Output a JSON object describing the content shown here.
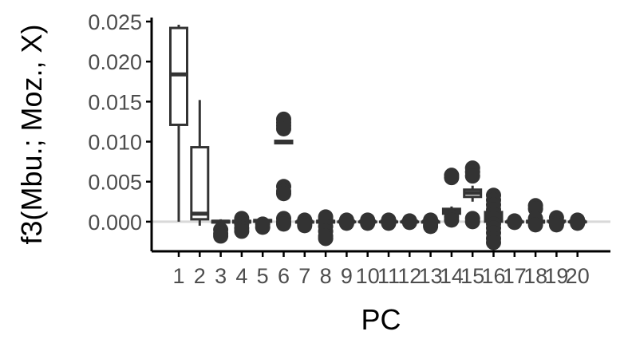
{
  "chart_data": {
    "type": "boxplot",
    "xlabel": "PC",
    "ylabel": "f3(Mbu.; Moz., X)",
    "ylim": [
      -0.0037,
      0.0255
    ],
    "y_ticks": [
      0.0,
      0.005,
      0.01,
      0.015,
      0.02,
      0.025
    ],
    "y_tick_labels": [
      "0.000",
      "0.005",
      "0.010",
      "0.015",
      "0.020",
      "0.025"
    ],
    "categories": [
      "1",
      "2",
      "3",
      "4",
      "5",
      "6",
      "7",
      "8",
      "9",
      "10",
      "11",
      "12",
      "13",
      "14",
      "15",
      "16",
      "17",
      "18",
      "19",
      "20"
    ],
    "grid": false,
    "reference_line": 0.0,
    "colors": {
      "box": "#333333",
      "reference_line": "#d9d9d9",
      "axis": "#000000",
      "tick_label": "#4d4d4d"
    },
    "boxes": [
      {
        "pc": "1",
        "min": 0.0,
        "q1": 0.0121,
        "median": 0.0184,
        "q3": 0.0242,
        "max": 0.0246,
        "outliers": []
      },
      {
        "pc": "2",
        "min": -0.0005,
        "q1": 0.0003,
        "median": 0.001,
        "q3": 0.0093,
        "max": 0.0152,
        "outliers": []
      },
      {
        "pc": "3",
        "min": -0.0002,
        "q1": -0.0001,
        "median": 0.0,
        "q3": 0.0001,
        "max": 0.0003,
        "outliers": [
          -0.001,
          -0.0015,
          -0.0018
        ]
      },
      {
        "pc": "4",
        "min": -0.0002,
        "q1": -0.0001,
        "median": 0.0,
        "q3": 0.0001,
        "max": 0.0002,
        "outliers": [
          0.0004,
          -0.0003,
          -0.0008,
          -0.0012
        ]
      },
      {
        "pc": "5",
        "min": -0.0001,
        "q1": 0.0,
        "median": 0.0001,
        "q3": 0.0002,
        "max": 0.0003,
        "outliers": [
          -0.0003,
          -0.0007
        ]
      },
      {
        "pc": "6",
        "min": 0.0097,
        "q1": 0.0098,
        "median": 0.0099,
        "q3": 0.0101,
        "max": 0.0102,
        "outliers": [
          0.0128,
          0.0124,
          0.012,
          0.0116,
          0.0044,
          0.0038,
          0.0035,
          0.0004,
          0.0,
          -0.0003
        ]
      },
      {
        "pc": "7",
        "min": -0.0001,
        "q1": -0.0001,
        "median": 0.0,
        "q3": 0.0,
        "max": 0.0001,
        "outliers": [
          0.0002,
          -0.0003,
          -0.0005
        ]
      },
      {
        "pc": "8",
        "min": -0.0002,
        "q1": -0.0001,
        "median": 0.0,
        "q3": 0.0001,
        "max": 0.0002,
        "outliers": [
          0.0006,
          0.0003,
          -0.0006,
          -0.0012,
          -0.0018,
          -0.0021
        ]
      },
      {
        "pc": "9",
        "min": -0.0001,
        "q1": 0.0,
        "median": 0.0,
        "q3": 0.0,
        "max": 0.0001,
        "outliers": [
          0.0002,
          -0.0002
        ]
      },
      {
        "pc": "10",
        "min": -0.0001,
        "q1": 0.0,
        "median": 0.0,
        "q3": 0.0,
        "max": 0.0001,
        "outliers": [
          0.0002,
          -0.0002
        ]
      },
      {
        "pc": "11",
        "min": -0.0001,
        "q1": 0.0,
        "median": 0.0,
        "q3": 0.0,
        "max": 0.0001,
        "outliers": [
          0.0002,
          -0.0002
        ]
      },
      {
        "pc": "12",
        "min": -0.0001,
        "q1": 0.0,
        "median": 0.0,
        "q3": 0.0,
        "max": 0.0001,
        "outliers": [
          0.0001,
          -0.0001
        ]
      },
      {
        "pc": "13",
        "min": -0.0002,
        "q1": -0.0001,
        "median": 0.0,
        "q3": 0.0,
        "max": 0.0001,
        "outliers": [
          0.0002,
          -0.0004,
          -0.0006
        ]
      },
      {
        "pc": "14",
        "min": 0.0004,
        "q1": 0.001,
        "median": 0.0013,
        "q3": 0.0016,
        "max": 0.0019,
        "outliers": [
          0.0058,
          0.0055,
          0.0006,
          0.0002
        ]
      },
      {
        "pc": "15",
        "min": 0.0025,
        "q1": 0.0031,
        "median": 0.0036,
        "q3": 0.004,
        "max": 0.0045,
        "outliers": [
          0.0067,
          0.0062,
          0.0057,
          0.0004,
          0.0
        ]
      },
      {
        "pc": "16",
        "min": -0.0005,
        "q1": 0.0,
        "median": 0.0006,
        "q3": 0.0012,
        "max": 0.002,
        "outliers": [
          0.0033,
          0.0027,
          0.0021,
          0.0015,
          0.0009,
          0.0004,
          -0.0003,
          -0.0008,
          -0.0014,
          -0.0021,
          -0.0026
        ]
      },
      {
        "pc": "17",
        "min": -0.0001,
        "q1": 0.0,
        "median": 0.0,
        "q3": 0.0,
        "max": 0.0001,
        "outliers": [
          0.0001,
          -0.0001
        ]
      },
      {
        "pc": "18",
        "min": -0.0002,
        "q1": -0.0001,
        "median": 0.0,
        "q3": 0.0001,
        "max": 0.0002,
        "outliers": [
          0.002,
          0.0016,
          0.0004,
          -0.0004
        ]
      },
      {
        "pc": "19",
        "min": -0.0001,
        "q1": 0.0,
        "median": 0.0,
        "q3": 0.0001,
        "max": 0.0002,
        "outliers": [
          0.0005,
          -0.0002,
          -0.0004
        ]
      },
      {
        "pc": "20",
        "min": -0.0001,
        "q1": 0.0,
        "median": 0.0,
        "q3": 0.0,
        "max": 0.0001,
        "outliers": [
          0.0002,
          -0.0002
        ]
      }
    ]
  }
}
